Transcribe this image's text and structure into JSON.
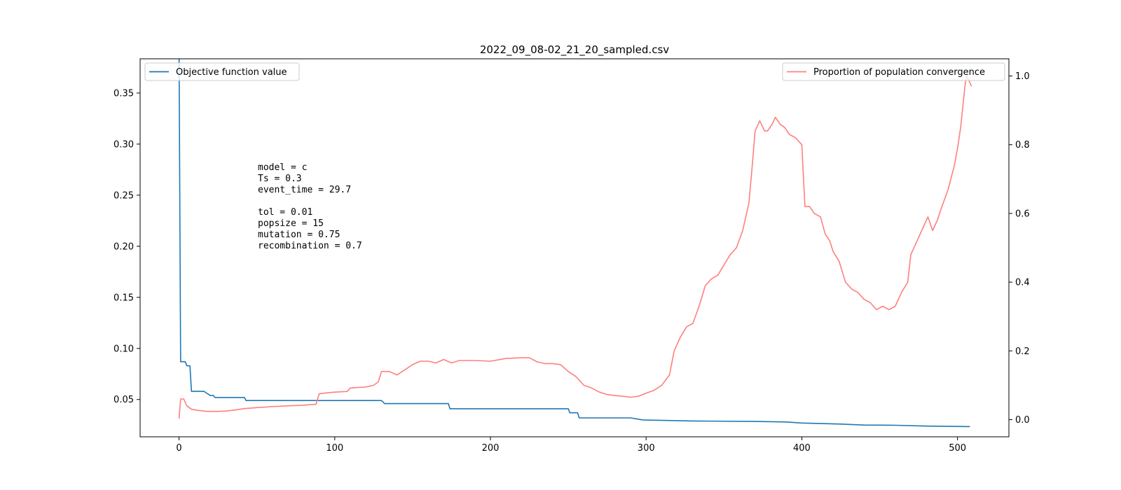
{
  "chart_data": {
    "type": "line",
    "title": "2022_09_08-02_21_20_sampled.csv",
    "xlabel": "",
    "ylabel": "",
    "y2label": "",
    "xlim": [
      -25,
      533
    ],
    "ylim": [
      0.0135,
      0.3835
    ],
    "y2lim": [
      -0.05,
      1.05
    ],
    "xticks": [
      0,
      100,
      200,
      300,
      400,
      500
    ],
    "yticks": [
      0.05,
      0.1,
      0.15,
      0.2,
      0.25,
      0.3,
      0.35
    ],
    "y2ticks": [
      0.0,
      0.2,
      0.4,
      0.6,
      0.8,
      1.0
    ],
    "grid": false,
    "series": [
      {
        "name": "Objective function value",
        "axis": "left",
        "color": "#1f77b4",
        "legend": "upper left",
        "points": [
          [
            0,
            0.385
          ],
          [
            1,
            0.087
          ],
          [
            4,
            0.087
          ],
          [
            5,
            0.083
          ],
          [
            7,
            0.083
          ],
          [
            8,
            0.058
          ],
          [
            16,
            0.058
          ],
          [
            18,
            0.056
          ],
          [
            20,
            0.054
          ],
          [
            22,
            0.054
          ],
          [
            23,
            0.052
          ],
          [
            42,
            0.052
          ],
          [
            43,
            0.049
          ],
          [
            130,
            0.049
          ],
          [
            132,
            0.046
          ],
          [
            173,
            0.046
          ],
          [
            174,
            0.041
          ],
          [
            250,
            0.041
          ],
          [
            251,
            0.037
          ],
          [
            256,
            0.037
          ],
          [
            257,
            0.032
          ],
          [
            290,
            0.032
          ],
          [
            298,
            0.03
          ],
          [
            330,
            0.029
          ],
          [
            370,
            0.0285
          ],
          [
            390,
            0.028
          ],
          [
            400,
            0.027
          ],
          [
            425,
            0.026
          ],
          [
            440,
            0.025
          ],
          [
            460,
            0.0248
          ],
          [
            480,
            0.024
          ],
          [
            508,
            0.0235
          ]
        ]
      },
      {
        "name": "Proportion of population convergence",
        "axis": "right",
        "color": "#ff7f7f",
        "legend": "upper right",
        "points": [
          [
            0,
            0.003
          ],
          [
            1,
            0.06
          ],
          [
            3,
            0.06
          ],
          [
            5,
            0.04
          ],
          [
            8,
            0.03
          ],
          [
            12,
            0.027
          ],
          [
            18,
            0.024
          ],
          [
            25,
            0.024
          ],
          [
            30,
            0.025
          ],
          [
            36,
            0.028
          ],
          [
            42,
            0.032
          ],
          [
            50,
            0.035
          ],
          [
            60,
            0.038
          ],
          [
            70,
            0.04
          ],
          [
            80,
            0.042
          ],
          [
            88,
            0.045
          ],
          [
            90,
            0.075
          ],
          [
            95,
            0.078
          ],
          [
            100,
            0.08
          ],
          [
            108,
            0.082
          ],
          [
            110,
            0.092
          ],
          [
            120,
            0.095
          ],
          [
            125,
            0.1
          ],
          [
            128,
            0.11
          ],
          [
            130,
            0.14
          ],
          [
            135,
            0.14
          ],
          [
            140,
            0.13
          ],
          [
            145,
            0.145
          ],
          [
            150,
            0.16
          ],
          [
            155,
            0.17
          ],
          [
            160,
            0.17
          ],
          [
            165,
            0.165
          ],
          [
            170,
            0.175
          ],
          [
            175,
            0.165
          ],
          [
            180,
            0.172
          ],
          [
            190,
            0.172
          ],
          [
            200,
            0.17
          ],
          [
            210,
            0.178
          ],
          [
            220,
            0.18
          ],
          [
            225,
            0.18
          ],
          [
            230,
            0.168
          ],
          [
            235,
            0.163
          ],
          [
            240,
            0.163
          ],
          [
            245,
            0.16
          ],
          [
            250,
            0.14
          ],
          [
            255,
            0.125
          ],
          [
            260,
            0.1
          ],
          [
            265,
            0.092
          ],
          [
            270,
            0.08
          ],
          [
            275,
            0.073
          ],
          [
            280,
            0.07
          ],
          [
            285,
            0.068
          ],
          [
            290,
            0.065
          ],
          [
            295,
            0.068
          ],
          [
            300,
            0.077
          ],
          [
            305,
            0.085
          ],
          [
            310,
            0.1
          ],
          [
            315,
            0.13
          ],
          [
            318,
            0.2
          ],
          [
            322,
            0.24
          ],
          [
            326,
            0.27
          ],
          [
            330,
            0.28
          ],
          [
            334,
            0.33
          ],
          [
            338,
            0.39
          ],
          [
            342,
            0.41
          ],
          [
            346,
            0.42
          ],
          [
            350,
            0.45
          ],
          [
            354,
            0.48
          ],
          [
            358,
            0.5
          ],
          [
            362,
            0.55
          ],
          [
            366,
            0.63
          ],
          [
            368,
            0.73
          ],
          [
            370,
            0.84
          ],
          [
            373,
            0.87
          ],
          [
            376,
            0.84
          ],
          [
            378,
            0.84
          ],
          [
            381,
            0.86
          ],
          [
            383,
            0.88
          ],
          [
            386,
            0.86
          ],
          [
            389,
            0.85
          ],
          [
            392,
            0.83
          ],
          [
            396,
            0.82
          ],
          [
            400,
            0.8
          ],
          [
            402,
            0.62
          ],
          [
            405,
            0.62
          ],
          [
            408,
            0.6
          ],
          [
            412,
            0.59
          ],
          [
            415,
            0.54
          ],
          [
            418,
            0.52
          ],
          [
            420,
            0.49
          ],
          [
            424,
            0.46
          ],
          [
            428,
            0.4
          ],
          [
            432,
            0.38
          ],
          [
            436,
            0.37
          ],
          [
            440,
            0.35
          ],
          [
            444,
            0.34
          ],
          [
            448,
            0.32
          ],
          [
            452,
            0.33
          ],
          [
            456,
            0.32
          ],
          [
            460,
            0.33
          ],
          [
            464,
            0.37
          ],
          [
            468,
            0.4
          ],
          [
            470,
            0.48
          ],
          [
            474,
            0.52
          ],
          [
            478,
            0.56
          ],
          [
            481,
            0.59
          ],
          [
            484,
            0.55
          ],
          [
            487,
            0.58
          ],
          [
            490,
            0.62
          ],
          [
            494,
            0.67
          ],
          [
            498,
            0.74
          ],
          [
            500,
            0.79
          ],
          [
            502,
            0.85
          ],
          [
            505,
            0.98
          ],
          [
            506,
            1.0
          ],
          [
            509,
            0.97
          ]
        ]
      }
    ],
    "annotations": [
      "model = c",
      "Ts = 0.3",
      "event_time = 29.7",
      "",
      "tol = 0.01",
      "popsize = 15",
      "mutation = 0.75",
      "recombination = 0.7"
    ]
  }
}
